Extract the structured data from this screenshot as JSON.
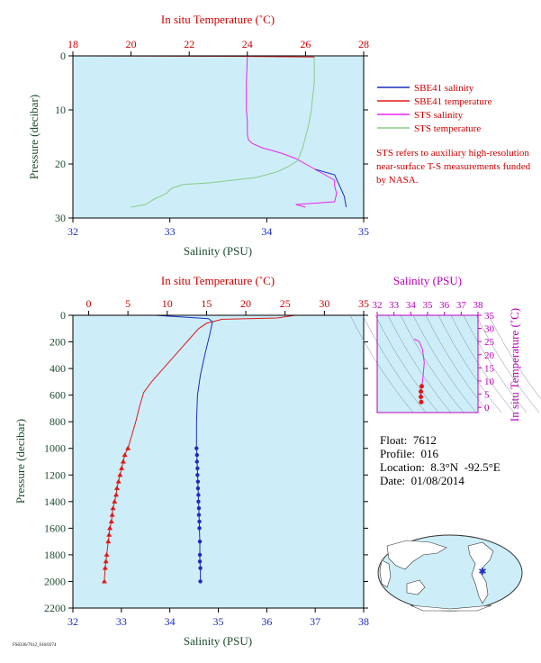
{
  "colors": {
    "panel_bg": "#cdeef8",
    "salinity": "#1c2dbd",
    "temperature": "#e01818",
    "sts_salinity": "#ee22ee",
    "sts_temperature": "#88cc88",
    "axis_label_dark": "#1b4d2a",
    "magenta_axis": "#bb00bb"
  },
  "legend": [
    {
      "label": "SBE41 salinity",
      "color": "#1c2dbd"
    },
    {
      "label": "SBE41 temperature",
      "color": "#e01818"
    },
    {
      "label": "STS salinity",
      "color": "#ee22ee"
    },
    {
      "label": "STS temperature",
      "color": "#88cc88"
    }
  ],
  "note": "STS refers to auxiliary high-resolution near-surface T-S measurements funded by NASA.",
  "float_info": {
    "float": "Float:  7612",
    "profile": "Profile:  016",
    "location": "Location:  8.3°N  -92.5°E",
    "date": "Date:  01/08/2014"
  },
  "chart_data": [
    {
      "type": "line",
      "name": "near-surface profile",
      "top_axis_label": "In situ Temperature (˚C)",
      "xlabel": "Salinity (PSU)",
      "ylabel": "Pressure (decibar)",
      "top_axis_ticks": [
        18,
        20,
        22,
        24,
        26,
        28
      ],
      "bottom_axis_ticks": [
        32,
        33,
        34,
        35
      ],
      "y_ticks": [
        0,
        10,
        20,
        30
      ],
      "temp_range": [
        18,
        28
      ],
      "sal_range": [
        32,
        35
      ],
      "ylim": [
        30,
        0
      ],
      "series": [
        {
          "name": "STS salinity",
          "axis": "salinity",
          "x": [
            33.8,
            33.79,
            33.79,
            33.8,
            33.8,
            33.81,
            33.85,
            33.95,
            34.15,
            34.3,
            34.4,
            34.5,
            34.6,
            34.65,
            34.7,
            34.7,
            34.72,
            34.7,
            34.3,
            34.4
          ],
          "y": [
            0.2,
            5,
            10,
            12,
            14.5,
            15.5,
            16.2,
            17,
            18,
            19,
            20,
            21,
            22,
            22.5,
            23,
            24,
            25.5,
            27,
            27.5,
            28
          ]
        },
        {
          "name": "STS temperature",
          "axis": "temperature",
          "x": [
            26.3,
            26.3,
            26.2,
            26.1,
            26.0,
            25.9,
            25.8,
            25.7,
            25.4,
            25.0,
            24.3,
            23.5,
            22.7,
            21.8,
            21.4,
            21.2,
            20.8,
            20.5,
            20.0
          ],
          "y": [
            0.2,
            5,
            10,
            13,
            15,
            17,
            18.5,
            19.5,
            20.5,
            21.5,
            22.5,
            23.0,
            23.5,
            23.8,
            24.5,
            25.5,
            26.5,
            27.5,
            28
          ]
        },
        {
          "name": "SBE41 salinity",
          "axis": "salinity",
          "x": [
            34.5,
            34.7,
            34.75,
            34.8,
            34.82
          ],
          "y": [
            21,
            22,
            24,
            26,
            28
          ]
        },
        {
          "name": "SBE41 temperature",
          "axis": "temperature",
          "x": [
            18.0,
            24.0,
            26.3
          ],
          "y": [
            0,
            0.1,
            0.2
          ]
        }
      ]
    },
    {
      "type": "line",
      "name": "full-depth profile",
      "top_axis_label": "In situ Temperature (˚C)",
      "xlabel": "Salinity (PSU)",
      "ylabel": "Pressure (decibar)",
      "top_axis_ticks": [
        0,
        5,
        10,
        15,
        20,
        25,
        30,
        35
      ],
      "bottom_axis_ticks": [
        32,
        33,
        34,
        35,
        36,
        37,
        38
      ],
      "y_ticks": [
        0,
        200,
        400,
        600,
        800,
        1000,
        1200,
        1400,
        1600,
        1800,
        2000,
        2200
      ],
      "temp_range": [
        -2,
        35
      ],
      "sal_range": [
        32,
        38
      ],
      "ylim": [
        2200,
        0
      ],
      "series": [
        {
          "name": "SBE41 temperature",
          "axis": "temperature",
          "marker": "triangle",
          "x": [
            26.3,
            24,
            17,
            15,
            14,
            12.5,
            11,
            9.5,
            8,
            7,
            6.5,
            6,
            5.5,
            5,
            4.6,
            4.4,
            4.2,
            4.0,
            3.8,
            3.6,
            3.5,
            3.3,
            3.1,
            3.0,
            2.9,
            2.7,
            2.6,
            2.5,
            2.3,
            2.2,
            2.1,
            2.0
          ],
          "y": [
            0,
            20,
            30,
            60,
            100,
            200,
            300,
            400,
            500,
            580,
            680,
            800,
            900,
            1000,
            1050,
            1100,
            1150,
            1200,
            1250,
            1300,
            1350,
            1400,
            1450,
            1500,
            1550,
            1600,
            1650,
            1700,
            1800,
            1850,
            1900,
            2000
          ]
        },
        {
          "name": "SBE41 salinity",
          "axis": "salinity",
          "marker": "circle",
          "x": [
            33.7,
            34.8,
            34.88,
            34.82,
            34.72,
            34.63,
            34.57,
            34.55,
            34.55,
            34.56,
            34.56,
            34.57,
            34.57,
            34.58,
            34.58,
            34.59,
            34.59,
            34.6,
            34.6,
            34.61,
            34.61,
            34.62,
            34.62,
            34.62,
            34.63,
            34.63
          ],
          "y": [
            0,
            25,
            50,
            150,
            300,
            450,
            600,
            800,
            1000,
            1050,
            1100,
            1150,
            1200,
            1250,
            1300,
            1350,
            1400,
            1450,
            1500,
            1550,
            1600,
            1700,
            1800,
            1850,
            1900,
            2000
          ]
        }
      ]
    },
    {
      "type": "scatter",
      "name": "T-S diagram",
      "xlabel": "Salinity (PSU)",
      "ylabel": "In situ Temperature (˚C)",
      "x_ticks": [
        32,
        33,
        34,
        35,
        36,
        37,
        38
      ],
      "y_ticks": [
        0,
        5,
        10,
        15,
        20,
        25,
        30,
        35
      ],
      "xlim": [
        32,
        38
      ],
      "ylim": [
        -2,
        35
      ],
      "series": [
        {
          "name": "profile",
          "x": [
            34.2,
            34.5,
            34.7,
            34.8,
            34.75,
            34.7,
            34.65,
            34.6,
            34.6,
            34.62
          ],
          "y": [
            26,
            25,
            22,
            17,
            13,
            10,
            8,
            6,
            4,
            2
          ]
        }
      ]
    }
  ]
}
